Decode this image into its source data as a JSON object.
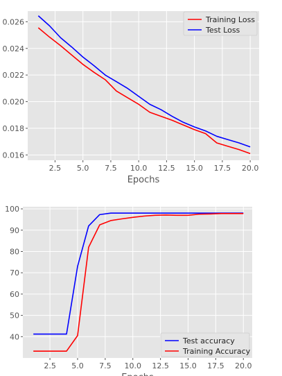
{
  "chart_data": [
    {
      "type": "line",
      "xlabel": "Epochs",
      "ylabel": "",
      "xlim": [
        0.05,
        20.8
      ],
      "ylim": [
        0.0156,
        0.0268
      ],
      "xticks": [
        2.5,
        5.0,
        7.5,
        10.0,
        12.5,
        15.0,
        17.5,
        20.0
      ],
      "xtick_labels": [
        "2.5",
        "5.0",
        "7.5",
        "10.0",
        "12.5",
        "15.0",
        "17.5",
        "20.0"
      ],
      "yticks": [
        0.016,
        0.018,
        0.02,
        0.022,
        0.024,
        0.026
      ],
      "ytick_labels": [
        "0.016",
        "0.018",
        "0.020",
        "0.022",
        "0.024",
        "0.026"
      ],
      "grid": true,
      "legend": "top-right",
      "x": [
        1,
        2,
        3,
        4,
        5,
        6,
        7,
        8,
        9,
        10,
        11,
        12,
        13,
        14,
        15,
        16,
        17,
        18,
        19,
        20
      ],
      "series": [
        {
          "name": "Training Loss",
          "color": "#ff0000",
          "values": [
            0.02555,
            0.02485,
            0.0242,
            0.0235,
            0.0228,
            0.0222,
            0.02165,
            0.0208,
            0.0203,
            0.0198,
            0.0192,
            0.0189,
            0.0186,
            0.01825,
            0.0179,
            0.0176,
            0.0169,
            0.01665,
            0.0164,
            0.0161
          ]
        },
        {
          "name": "Test Loss",
          "color": "#0000ff",
          "values": [
            0.02645,
            0.0257,
            0.0248,
            0.0241,
            0.02335,
            0.0227,
            0.022,
            0.0215,
            0.021,
            0.0204,
            0.0198,
            0.0194,
            0.0189,
            0.01845,
            0.0181,
            0.0178,
            0.0174,
            0.01715,
            0.0169,
            0.0166
          ]
        }
      ]
    },
    {
      "type": "line",
      "xlabel": "Epochs",
      "ylabel": "",
      "xlim": [
        0.05,
        20.8
      ],
      "ylim": [
        30,
        101
      ],
      "xticks": [
        2.5,
        5.0,
        7.5,
        10.0,
        12.5,
        15.0,
        17.5,
        20.0
      ],
      "xtick_labels": [
        "2.5",
        "5.0",
        "7.5",
        "10.0",
        "12.5",
        "15.0",
        "17.5",
        "20.0"
      ],
      "yticks": [
        40,
        50,
        60,
        70,
        80,
        90,
        100
      ],
      "ytick_labels": [
        "40",
        "50",
        "60",
        "70",
        "80",
        "90",
        "100"
      ],
      "grid": true,
      "legend": "bottom-right",
      "x": [
        1,
        2,
        3,
        4,
        5,
        6,
        7,
        8,
        9,
        10,
        11,
        12,
        13,
        14,
        15,
        16,
        17,
        18,
        19,
        20
      ],
      "series": [
        {
          "name": "Test accuracy",
          "color": "#0000ff",
          "values": [
            41.2,
            41.2,
            41.2,
            41.2,
            73,
            92,
            97.3,
            98,
            98,
            98,
            98,
            98,
            98,
            98,
            98,
            98,
            98,
            98,
            98,
            98
          ]
        },
        {
          "name": "Training Accuracy",
          "color": "#ff0000",
          "values": [
            33.2,
            33.2,
            33.2,
            33.2,
            40.5,
            82,
            92.5,
            94.5,
            95.3,
            96,
            96.6,
            97,
            97.1,
            97,
            97,
            97.5,
            97.6,
            97.8,
            97.8,
            97.8
          ]
        }
      ]
    }
  ]
}
